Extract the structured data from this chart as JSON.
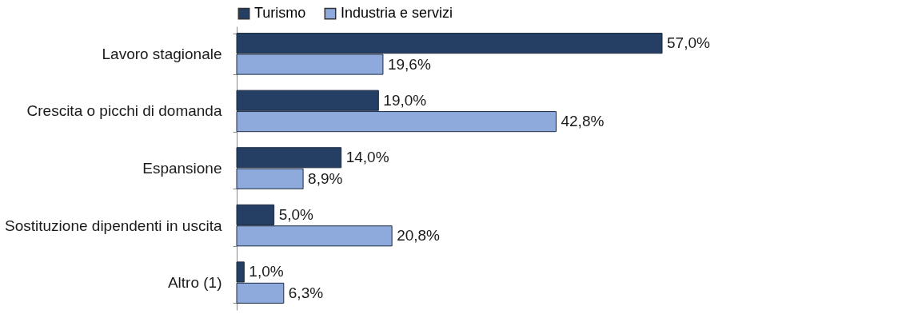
{
  "chart_data": {
    "type": "bar",
    "orientation": "horizontal",
    "categories": [
      "Lavoro stagionale",
      "Crescita o picchi di domanda",
      "Espansione",
      "Sostituzione dipendenti in uscita",
      "Altro (1)"
    ],
    "series": [
      {
        "name": "Turismo",
        "color": "#243f63",
        "values": [
          57.0,
          19.0,
          14.0,
          5.0,
          1.0
        ],
        "value_labels": [
          "57,0%",
          "19,0%",
          "14,0%",
          "5,0%",
          "1,0%"
        ]
      },
      {
        "name": "Industria e servizi",
        "color": "#8eaadc",
        "values": [
          19.6,
          42.8,
          8.9,
          20.8,
          6.3
        ],
        "value_labels": [
          "19,6%",
          "42,8%",
          "8,9%",
          "20,8%",
          "6,3%"
        ]
      }
    ],
    "legend": "top"
  }
}
